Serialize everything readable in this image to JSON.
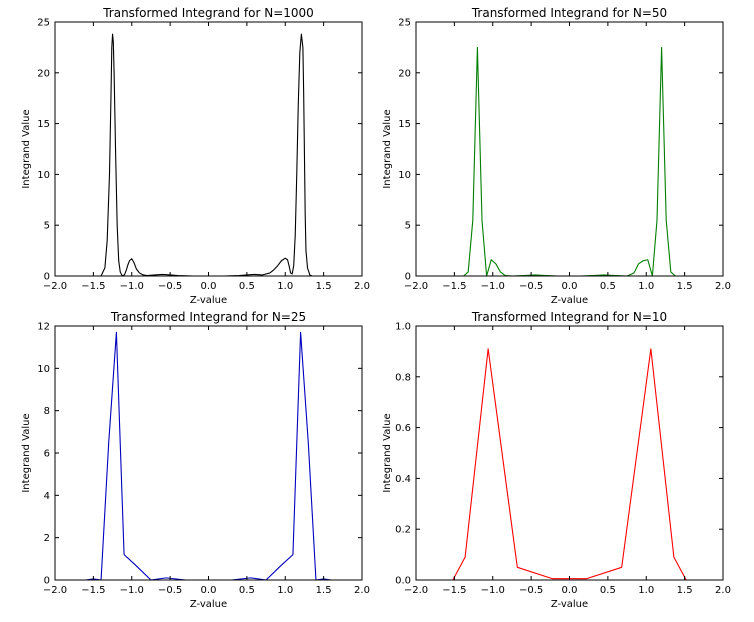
{
  "chart_data": [
    {
      "type": "line",
      "title": "Transformed Integrand for N=1000",
      "xlabel": "Z-value",
      "ylabel": "Integrand Value",
      "xlim": [
        -2.0,
        2.0
      ],
      "ylim": [
        0,
        25
      ],
      "xticks": [
        -2.0,
        -1.5,
        -1.0,
        -0.5,
        0.0,
        0.5,
        1.0,
        1.5,
        2.0
      ],
      "xtick_labels": [
        "−2.0",
        "−1.5",
        "−1.0",
        "−0.5",
        "0.0",
        "0.5",
        "1.0",
        "1.5",
        "2.0"
      ],
      "yticks": [
        0,
        5,
        10,
        15,
        20,
        25
      ],
      "ytick_labels": [
        "0",
        "5",
        "10",
        "15",
        "20",
        "25"
      ],
      "grid": false,
      "series": [
        {
          "color": "#000000",
          "x": [
            -1.55,
            -1.4,
            -1.35,
            -1.32,
            -1.29,
            -1.27,
            -1.26,
            -1.25,
            -1.24,
            -1.23,
            -1.21,
            -1.19,
            -1.17,
            -1.15,
            -1.13,
            -1.11,
            -1.09,
            -1.07,
            -1.05,
            -1.03,
            -1.0,
            -0.97,
            -0.94,
            -0.9,
            -0.85,
            -0.8,
            -0.7,
            -0.6,
            -0.5,
            -0.4,
            -0.3,
            -0.2,
            -0.1,
            0.0,
            0.1,
            0.2,
            0.3,
            0.4,
            0.5,
            0.6,
            0.7,
            0.8,
            0.85,
            0.9,
            0.95,
            1.0,
            1.03,
            1.05,
            1.07,
            1.09,
            1.11,
            1.13,
            1.15,
            1.17,
            1.19,
            1.21,
            1.23,
            1.24,
            1.25,
            1.26,
            1.27,
            1.29,
            1.32,
            1.35,
            1.4,
            1.55
          ],
          "y": [
            0.0,
            0.0,
            0.8,
            3.5,
            10.0,
            18.0,
            22.5,
            23.8,
            23.0,
            20.0,
            12.0,
            5.0,
            1.5,
            0.4,
            0.1,
            0.0,
            0.2,
            0.6,
            1.1,
            1.5,
            1.7,
            1.3,
            0.7,
            0.3,
            0.1,
            0.05,
            0.1,
            0.15,
            0.1,
            0.05,
            0.02,
            0.0,
            0.0,
            0.0,
            0.0,
            0.0,
            0.02,
            0.05,
            0.1,
            0.15,
            0.1,
            0.3,
            0.6,
            1.0,
            1.5,
            1.75,
            1.6,
            1.0,
            0.3,
            0.2,
            1.0,
            4.0,
            10.0,
            17.0,
            22.0,
            23.8,
            22.5,
            18.0,
            12.0,
            6.0,
            2.5,
            0.8,
            0.1,
            0.0,
            0.0,
            0.0
          ]
        }
      ]
    },
    {
      "type": "line",
      "title": "Transformed Integrand for N=50",
      "xlabel": "Z-value",
      "ylabel": "Integrand Value",
      "xlim": [
        -2.0,
        2.0
      ],
      "ylim": [
        0,
        25
      ],
      "xticks": [
        -2.0,
        -1.5,
        -1.0,
        -0.5,
        0.0,
        0.5,
        1.0,
        1.5,
        2.0
      ],
      "xtick_labels": [
        "−2.0",
        "−1.5",
        "−1.0",
        "−0.5",
        "0.0",
        "0.5",
        "1.0",
        "1.5",
        "2.0"
      ],
      "yticks": [
        0,
        5,
        10,
        15,
        20,
        25
      ],
      "ytick_labels": [
        "0",
        "5",
        "10",
        "15",
        "20",
        "25"
      ],
      "grid": false,
      "series": [
        {
          "color": "#007f00",
          "x": [
            -1.38,
            -1.32,
            -1.26,
            -1.2,
            -1.14,
            -1.08,
            -1.02,
            -0.96,
            -0.9,
            -0.84,
            -0.75,
            -0.6,
            -0.45,
            -0.3,
            -0.15,
            0.0,
            0.15,
            0.3,
            0.45,
            0.6,
            0.75,
            0.84,
            0.9,
            0.96,
            1.02,
            1.08,
            1.14,
            1.2,
            1.26,
            1.32,
            1.38
          ],
          "y": [
            0.0,
            0.4,
            5.5,
            22.5,
            5.5,
            0.0,
            1.6,
            1.2,
            0.4,
            0.05,
            0.0,
            0.05,
            0.1,
            0.05,
            0.0,
            0.0,
            0.0,
            0.05,
            0.1,
            0.05,
            0.0,
            0.3,
            1.2,
            1.5,
            1.6,
            0.0,
            5.5,
            22.5,
            5.5,
            0.4,
            0.0
          ]
        }
      ]
    },
    {
      "type": "line",
      "title": "Transformed Integrand for N=25",
      "xlabel": "Z-value",
      "ylabel": "Integrand Value",
      "xlim": [
        -2.0,
        2.0
      ],
      "ylim": [
        0,
        12
      ],
      "xticks": [
        -2.0,
        -1.5,
        -1.0,
        -0.5,
        0.0,
        0.5,
        1.0,
        1.5,
        2.0
      ],
      "xtick_labels": [
        "−2.0",
        "−1.5",
        "−1.0",
        "−0.5",
        "0.0",
        "0.5",
        "1.0",
        "1.5",
        "2.0"
      ],
      "yticks": [
        0,
        2,
        4,
        6,
        8,
        10,
        12
      ],
      "ytick_labels": [
        "0",
        "2",
        "4",
        "6",
        "8",
        "10",
        "12"
      ],
      "grid": false,
      "series": [
        {
          "color": "#0000bf",
          "x": [
            -1.6,
            -1.5,
            -1.4,
            -1.3,
            -1.2,
            -1.1,
            -0.95,
            -0.75,
            -0.55,
            -0.3,
            0.0,
            0.3,
            0.55,
            0.75,
            0.95,
            1.1,
            1.2,
            1.3,
            1.4,
            1.5,
            1.6
          ],
          "y": [
            0.0,
            0.05,
            0.0,
            6.5,
            11.7,
            1.2,
            0.7,
            0.0,
            0.1,
            0.0,
            0.0,
            0.0,
            0.1,
            0.0,
            0.7,
            1.2,
            11.7,
            6.5,
            0.0,
            0.05,
            0.0
          ]
        }
      ]
    },
    {
      "type": "line",
      "title": "Transformed Integrand for N=10",
      "xlabel": "Z-value",
      "ylabel": "Integrand Value",
      "xlim": [
        -2.0,
        2.0
      ],
      "ylim": [
        0.0,
        1.0
      ],
      "xticks": [
        -2.0,
        -1.5,
        -1.0,
        -0.5,
        0.0,
        0.5,
        1.0,
        1.5,
        2.0
      ],
      "xtick_labels": [
        "−2.0",
        "−1.5",
        "−1.0",
        "−0.5",
        "0.0",
        "0.5",
        "1.0",
        "1.5",
        "2.0"
      ],
      "yticks": [
        0.0,
        0.2,
        0.4,
        0.6,
        0.8,
        1.0
      ],
      "ytick_labels": [
        "0.0",
        "0.2",
        "0.4",
        "0.6",
        "0.8",
        "1.0"
      ],
      "grid": false,
      "series": [
        {
          "color": "#ff0000",
          "x": [
            -1.52,
            -1.36,
            -1.06,
            -0.68,
            -0.22,
            0.22,
            0.68,
            1.06,
            1.36,
            1.52
          ],
          "y": [
            0.0,
            0.09,
            0.91,
            0.05,
            0.005,
            0.005,
            0.05,
            0.91,
            0.09,
            0.0
          ]
        }
      ]
    }
  ]
}
